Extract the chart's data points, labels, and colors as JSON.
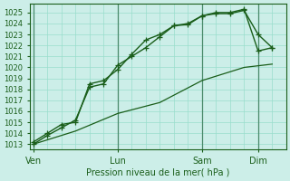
{
  "title": "",
  "xlabel": "Pression niveau de la mer( hPa )",
  "ylim": [
    1012.5,
    1025.8
  ],
  "yticks": [
    1013,
    1014,
    1015,
    1016,
    1017,
    1018,
    1019,
    1020,
    1021,
    1022,
    1023,
    1024,
    1025
  ],
  "background_color": "#cceee8",
  "grid_color": "#99ddcc",
  "line_color": "#1a5e1a",
  "vline_color": "#4a8a6a",
  "xtick_labels": [
    "Ven",
    "Lun",
    "Sam",
    "Dim"
  ],
  "xtick_positions": [
    0,
    24,
    48,
    64
  ],
  "line1_x": [
    0,
    4,
    8,
    12,
    16,
    20,
    24,
    28,
    32,
    36,
    40,
    44,
    48,
    52,
    56,
    60,
    64,
    68
  ],
  "line1_y": [
    1013.0,
    1013.8,
    1014.5,
    1015.2,
    1018.2,
    1018.5,
    1020.2,
    1021.0,
    1021.8,
    1022.8,
    1023.8,
    1023.9,
    1024.7,
    1024.9,
    1024.9,
    1025.2,
    1023.0,
    1021.8
  ],
  "line2_x": [
    0,
    4,
    8,
    12,
    16,
    20,
    24,
    28,
    32,
    36,
    40,
    44,
    48,
    52,
    56,
    60,
    64,
    68
  ],
  "line2_y": [
    1013.2,
    1014.0,
    1014.8,
    1015.0,
    1018.5,
    1018.8,
    1019.8,
    1021.2,
    1022.5,
    1023.0,
    1023.8,
    1024.0,
    1024.7,
    1025.0,
    1025.0,
    1025.3,
    1021.5,
    1021.8
  ],
  "line3_x": [
    0,
    12,
    24,
    36,
    48,
    60,
    68
  ],
  "line3_y": [
    1013.0,
    1014.2,
    1015.8,
    1016.8,
    1018.8,
    1020.0,
    1020.3
  ],
  "vline_positions": [
    0,
    24,
    48,
    64
  ],
  "xlim": [
    -1,
    72
  ]
}
